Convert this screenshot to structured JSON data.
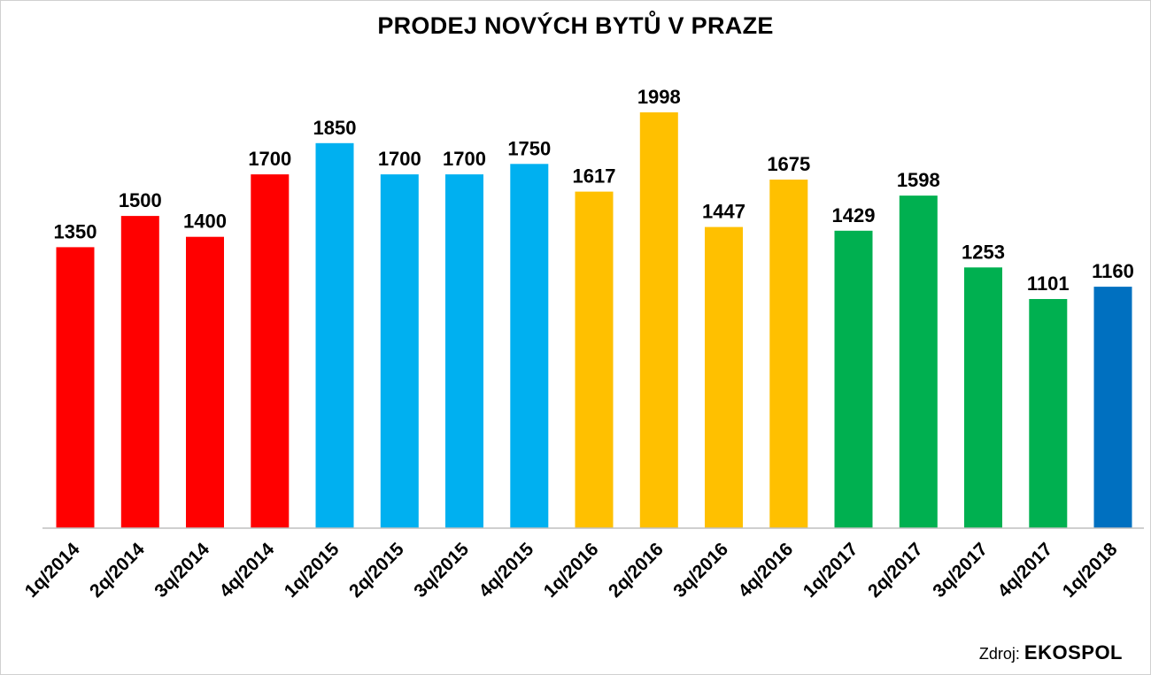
{
  "chart_data": {
    "type": "bar",
    "title": "PRODEJ NOVÝCH BYTŮ V PRAZE",
    "xlabel": "",
    "ylabel": "",
    "ylim": [
      0,
      2000
    ],
    "grid": false,
    "legend": "none",
    "categories": [
      "1q/2014",
      "2q/2014",
      "3q/2014",
      "4q/2014",
      "1q/2015",
      "2q/2015",
      "3q/2015",
      "4q/2015",
      "1q/2016",
      "2q/2016",
      "3q/2016",
      "4q/2016",
      "1q/2017",
      "2q/2017",
      "3q/2017",
      "4q/2017",
      "1q/2018"
    ],
    "values": [
      1350,
      1500,
      1400,
      1700,
      1850,
      1700,
      1700,
      1750,
      1617,
      1998,
      1447,
      1675,
      1429,
      1598,
      1253,
      1101,
      1160
    ],
    "data_labels": [
      "1350",
      "1500",
      "1400",
      "1700",
      "1850",
      "1700",
      "1700",
      "1750",
      "1617",
      "1998",
      "1447",
      "1675",
      "1429",
      "1598",
      "1253",
      "1101",
      "1160"
    ],
    "bar_colors": [
      "#ff0000",
      "#ff0000",
      "#ff0000",
      "#ff0000",
      "#00b0f0",
      "#00b0f0",
      "#00b0f0",
      "#00b0f0",
      "#ffc000",
      "#ffc000",
      "#ffc000",
      "#ffc000",
      "#00b050",
      "#00b050",
      "#00b050",
      "#00b050",
      "#0070c0"
    ]
  },
  "source": {
    "prefix": "Zdroj:",
    "name": "EKOSPOL"
  }
}
